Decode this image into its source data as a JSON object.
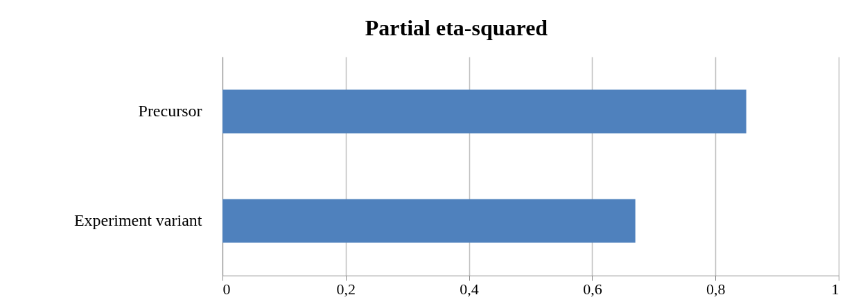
{
  "chart_data": {
    "type": "bar",
    "title": "Partial eta-squared",
    "orientation": "horizontal",
    "categories": [
      "Precursor",
      "Experiment variant"
    ],
    "values": [
      0.85,
      0.67
    ],
    "color": "#4f81bd",
    "xlim": [
      0,
      1
    ],
    "xticks": [
      0,
      {
        "value": 0.2,
        "label": "0,2"
      },
      {
        "value": 0.4,
        "label": "0,4"
      },
      {
        "value": 0.6,
        "label": "0,6"
      },
      {
        "value": 0.8,
        "label": "0,8"
      },
      1
    ],
    "grid": "x"
  }
}
